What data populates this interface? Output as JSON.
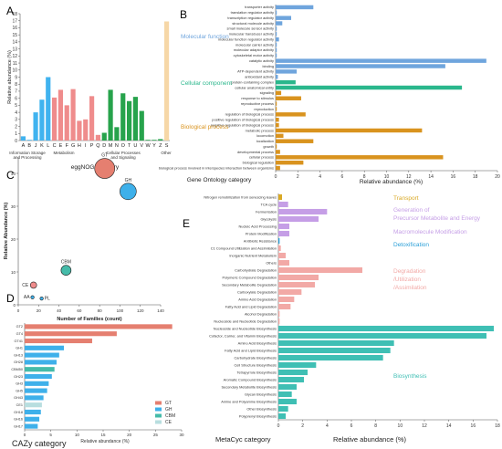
{
  "panel_letters": {
    "a": "A",
    "b": "B",
    "c": "C",
    "d": "D",
    "e": "E"
  },
  "colors": {
    "info": "#40b3ef",
    "meta": "#ef8c8c",
    "cell": "#27a34c",
    "other": "#f6d7a7",
    "molecular": "#6fa5dd",
    "component": "#2ab78c",
    "process": "#d9931e",
    "gt": "#e57f70",
    "gh": "#3eb0ea",
    "cbm": "#45bba9",
    "ce": "#b8dedf",
    "transport": "#d9a926",
    "precursor": "#c59ee6",
    "macro": "#c59ee6",
    "detox": "#2a9fd8",
    "degr": "#f2a9a6",
    "biosyn": "#3fbfb4"
  },
  "chart_data": [
    {
      "type": "bar",
      "title": "",
      "xlabel": "eggNOG category",
      "ylabel": "Relative abundance (%)",
      "ylim": [
        0,
        18
      ],
      "yticks": [
        0,
        1,
        2,
        3,
        4,
        5,
        6,
        7,
        8,
        9,
        10,
        11,
        12,
        13,
        14,
        15,
        16,
        17,
        18
      ],
      "categories": [
        "A",
        "B",
        "J",
        "K",
        "L",
        "C",
        "E",
        "F",
        "G",
        "H",
        "I",
        "P",
        "Q",
        "D",
        "M",
        "N",
        "O",
        "T",
        "U",
        "V",
        "W",
        "Y",
        "Z",
        "S"
      ],
      "values": [
        0.6,
        0.1,
        4.0,
        5.8,
        9.0,
        6.1,
        7.2,
        5.0,
        7.3,
        2.8,
        3.0,
        6.3,
        0.8,
        1.1,
        7.2,
        1.9,
        6.7,
        5.6,
        6.2,
        4.2,
        0.1,
        0.1,
        0.2,
        16.9
      ],
      "groups": [
        {
          "name": "Information Storage and Processing",
          "categories": [
            "A",
            "B",
            "J",
            "K",
            "L"
          ],
          "color_key": "info"
        },
        {
          "name": "Metabolism",
          "categories": [
            "C",
            "E",
            "F",
            "G",
            "H",
            "I",
            "P",
            "Q"
          ],
          "color_key": "meta"
        },
        {
          "name": "Cellular Processes and Signaling",
          "categories": [
            "D",
            "M",
            "N",
            "O",
            "T",
            "U",
            "V",
            "W",
            "Y",
            "Z"
          ],
          "color_key": "cell"
        },
        {
          "name": "Other",
          "categories": [
            "S"
          ],
          "color_key": "other"
        }
      ]
    },
    {
      "type": "bar",
      "orientation": "horizontal",
      "xlabel": "Relative abundance (%)",
      "ylabel": "Gene Ontology category",
      "xlim": [
        0,
        20
      ],
      "xticks": [
        0,
        2,
        4,
        6,
        8,
        10,
        12,
        14,
        16,
        18,
        20
      ],
      "categories": [
        "transporter activity",
        "translation regulator activity",
        "transcription regulator activity",
        "structural molecule activity",
        "small molecule sensor activity",
        "molecular transducer activity",
        "molecular function regulator activity",
        "molecular carrier activity",
        "molecular adaptor activity",
        "cytoskeletal motor activity",
        "catalytic activity",
        "binding",
        "ATP-dependent activity",
        "antioxidant activity",
        "protein-containing complex",
        "cellular anatomical entity",
        "signaling",
        "response to stimulus",
        "reproductive process",
        "reproduction",
        "regulation of biological process",
        "positive regulation of biological process",
        "negative regulation of biological process",
        "metabolic process",
        "locomotion",
        "localization",
        "growth",
        "developmental process",
        "cellular process",
        "biological regulation",
        "biological process involved in interspecies interaction between organisms"
      ],
      "values": [
        3.4,
        0.1,
        1.4,
        0.6,
        0.1,
        0.1,
        0.3,
        0.1,
        0.1,
        0.1,
        19.0,
        15.3,
        1.9,
        0.2,
        1.8,
        16.8,
        0.5,
        2.3,
        0.1,
        0.1,
        2.7,
        0.3,
        0.3,
        13.2,
        0.7,
        3.4,
        0.1,
        0.4,
        15.1,
        2.5,
        0.4
      ],
      "groups": [
        {
          "name": "Molecular function",
          "count": 14,
          "color_key": "molecular"
        },
        {
          "name": "Cellular component",
          "count": 2,
          "color_key": "component"
        },
        {
          "name": "Biological process",
          "count": 15,
          "color_key": "process"
        }
      ]
    },
    {
      "type": "scatter",
      "xlabel": "Number of Families (count)",
      "ylabel": "Relative Abundance (%)",
      "xlim": [
        0,
        140
      ],
      "ylim": [
        0,
        45
      ],
      "xticks": [
        0,
        20,
        40,
        60,
        80,
        100,
        120,
        140
      ],
      "yticks": [
        0,
        10,
        20,
        30,
        40
      ],
      "points": [
        {
          "name": "GT",
          "x": 85,
          "y": 41.5,
          "size": 11,
          "color_key": "gt"
        },
        {
          "name": "GH",
          "x": 108,
          "y": 34.5,
          "size": 9,
          "color_key": "gh"
        },
        {
          "name": "CBM",
          "x": 47,
          "y": 10.5,
          "size": 5.5,
          "color_key": "cbm"
        },
        {
          "name": "CE",
          "x": 15,
          "y": 6.0,
          "size": 3.5,
          "color_key": "meta"
        },
        {
          "name": "AA",
          "x": 14,
          "y": 2.3,
          "size": 1.8,
          "color_key": "gh"
        },
        {
          "name": "PL",
          "x": 23,
          "y": 1.9,
          "size": 1.8,
          "color_key": "gh"
        }
      ]
    },
    {
      "type": "bar",
      "orientation": "horizontal",
      "xlabel": "Relative abundance (%)",
      "ylabel": "CAZy category",
      "xlim": [
        0,
        30
      ],
      "xticks": [
        0,
        5,
        10,
        15,
        20,
        25,
        30
      ],
      "categories": [
        "GT2",
        "GT4",
        "GT41",
        "GH1",
        "GH13",
        "GH28",
        "CBM50",
        "GH23",
        "GH3",
        "GH5",
        "GH43",
        "CE1",
        "GH18",
        "GH16",
        "GH17"
      ],
      "values": [
        28.2,
        17.6,
        12.9,
        7.5,
        6.6,
        6.1,
        5.7,
        5.2,
        4.6,
        4.3,
        3.6,
        3.3,
        3.1,
        2.8,
        2.5
      ],
      "color_keys": [
        "gt",
        "gt",
        "gt",
        "gh",
        "gh",
        "gh",
        "cbm",
        "gh",
        "gh",
        "gh",
        "gh",
        "ce",
        "gh",
        "gh",
        "gh"
      ],
      "legend": [
        "GT",
        "GH",
        "CBM",
        "CE"
      ],
      "legend_placement": "bottom-right"
    },
    {
      "type": "bar",
      "orientation": "horizontal",
      "xlabel": "Relative abundance (%)",
      "ylabel": "MetaCyc category",
      "xlim": [
        0,
        18
      ],
      "xticks": [
        0,
        2,
        4,
        6,
        8,
        10,
        12,
        14,
        16,
        18
      ],
      "categories": [
        "Nitrogen remobilization from senescing leaves",
        "TCA cycle",
        "Fermentation",
        "Glycolysis",
        "Nucleic Acid Processing",
        "Protein Modification",
        "Antibiotic Resistance",
        "C1 Compound Utilization and Assimilation",
        "Inorganic Nutrient Metabolism",
        "Others",
        "Carbohydrate Degradation",
        "Polymeric Compound Degradation",
        "Secondary Metabolite Degradation",
        "Carboxylate Degradation",
        "Amino Acid Degradation",
        "Fatty Acid and Lipid Degradation",
        "Alcohol Degradation",
        "Nucleoside and Nucleotide Degradation",
        "Nucleoside and Nucleotide Biosynthesis",
        "Cofactor, Carrier, and Vitamin Biosynthesis",
        "Amino Acid Biosynthesis",
        "Fatty Acid and Lipid Biosynthesis",
        "Carbohydrate Biosynthesis",
        "Cell Structure Biosynthesis",
        "Tetrapyrrole Biosynthesis",
        "Aromatic Compound Biosynthesis",
        "Secondary Metabolite Biosynthesis",
        "Glycan Biosynthesis",
        "Amine and Polyamine Biosynthesis",
        "Other Biosynthesis",
        "Polyprenyl Biosynthesis"
      ],
      "values": [
        0.3,
        0.8,
        4.0,
        3.3,
        0.9,
        0.9,
        0.1,
        0.2,
        0.6,
        0.9,
        6.9,
        3.3,
        3.0,
        1.9,
        1.3,
        1.0,
        0.1,
        0.1,
        17.7,
        17.1,
        9.5,
        9.2,
        8.6,
        3.1,
        2.4,
        2.1,
        1.5,
        1.1,
        1.5,
        0.8,
        0.6
      ],
      "color_keys": [
        "transport",
        "precursor",
        "precursor",
        "precursor",
        "macro",
        "macro",
        "detox",
        "degr",
        "degr",
        "degr",
        "degr",
        "degr",
        "degr",
        "degr",
        "degr",
        "degr",
        "degr",
        "degr",
        "biosyn",
        "biosyn",
        "biosyn",
        "biosyn",
        "biosyn",
        "biosyn",
        "biosyn",
        "biosyn",
        "biosyn",
        "biosyn",
        "biosyn",
        "biosyn",
        "biosyn"
      ],
      "legend": [
        {
          "lines": [
            "Transport"
          ],
          "color_key": "transport"
        },
        {
          "lines": [
            "Generation of",
            "Precursor Metabolite and Energy"
          ],
          "color_key": "precursor"
        },
        {
          "lines": [
            "Macromolecule Modification"
          ],
          "color_key": "macro"
        },
        {
          "lines": [
            "Detoxification"
          ],
          "color_key": "detox"
        },
        {
          "lines": [
            "Degradation",
            "/Utilization",
            "/Assimilation"
          ],
          "color_key": "degr"
        },
        {
          "lines": [
            "Biosynthesis"
          ],
          "color_key": "biosyn"
        }
      ]
    }
  ]
}
